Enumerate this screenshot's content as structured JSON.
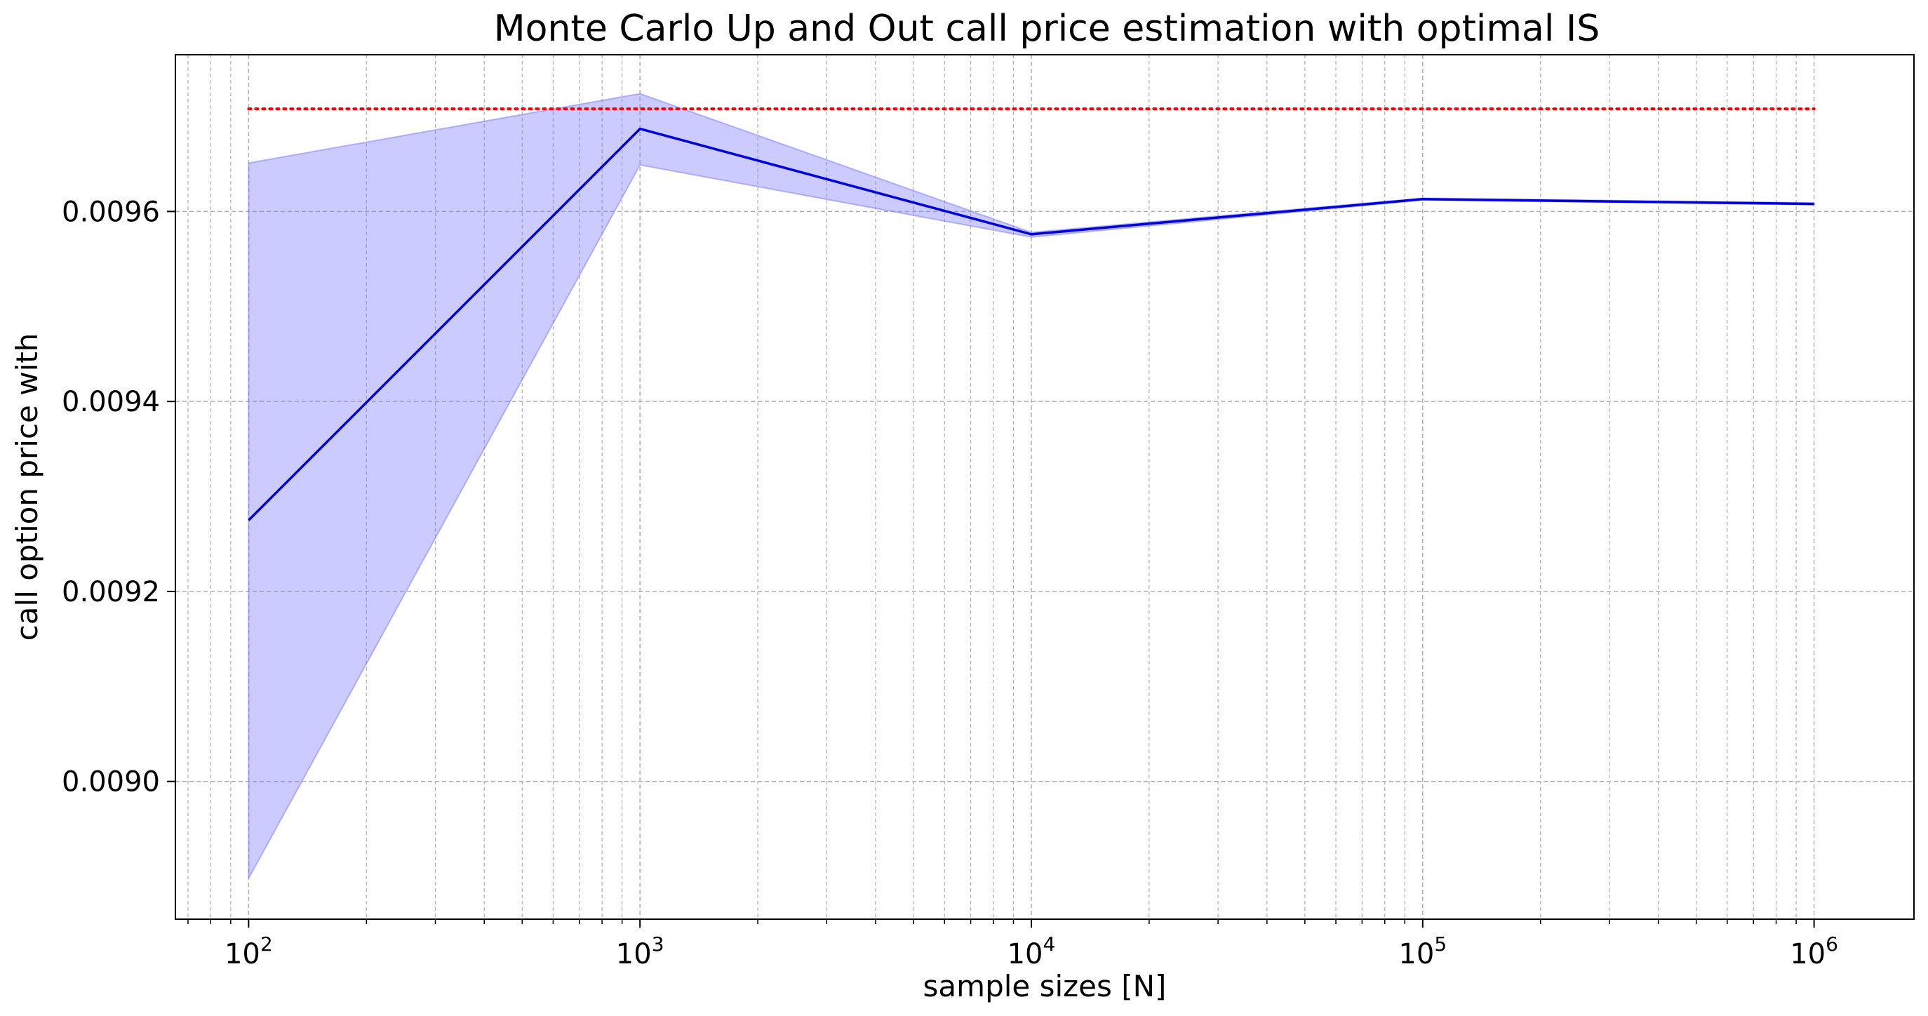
{
  "chart_data": {
    "type": "line",
    "title": "Monte Carlo Up and Out call price estimation with optimal IS",
    "xlabel": "sample sizes [N]",
    "ylabel": "call option price with",
    "xscale": "log",
    "xlim": [
      65,
      1800000
    ],
    "ylim": [
      0.008855,
      0.009765
    ],
    "grid": {
      "major": true,
      "minor_x": true,
      "style": "dashed"
    },
    "x_ticks": [
      {
        "base": "10",
        "exp": "2",
        "value": 100
      },
      {
        "base": "10",
        "exp": "3",
        "value": 1000
      },
      {
        "base": "10",
        "exp": "4",
        "value": 10000
      },
      {
        "base": "10",
        "exp": "5",
        "value": 100000
      },
      {
        "base": "10",
        "exp": "6",
        "value": 1000000
      }
    ],
    "y_ticks": [
      {
        "label": "0.0090",
        "value": 0.009
      },
      {
        "label": "0.0092",
        "value": 0.0092
      },
      {
        "label": "0.0094",
        "value": 0.0094
      },
      {
        "label": "0.0096",
        "value": 0.0096
      }
    ],
    "x": [
      100,
      1000,
      10000,
      100000,
      1000000
    ],
    "series": [
      {
        "values": [
          0.009275,
          0.009687,
          0.009576,
          0.009613,
          0.009608
        ],
        "color": "#0000dd"
      }
    ],
    "confidence_band": {
      "lower": [
        0.008898,
        0.009649,
        0.009573,
        0.009612,
        0.009607
      ],
      "upper": [
        0.009651,
        0.009724,
        0.009578,
        0.009614,
        0.009609
      ],
      "color": "#7777ff",
      "fill_opacity": 0.38
    },
    "reference_line": {
      "y": 0.009708,
      "x_range": [
        100,
        1000000
      ],
      "color": "#ff0000",
      "style": "dotted"
    }
  }
}
